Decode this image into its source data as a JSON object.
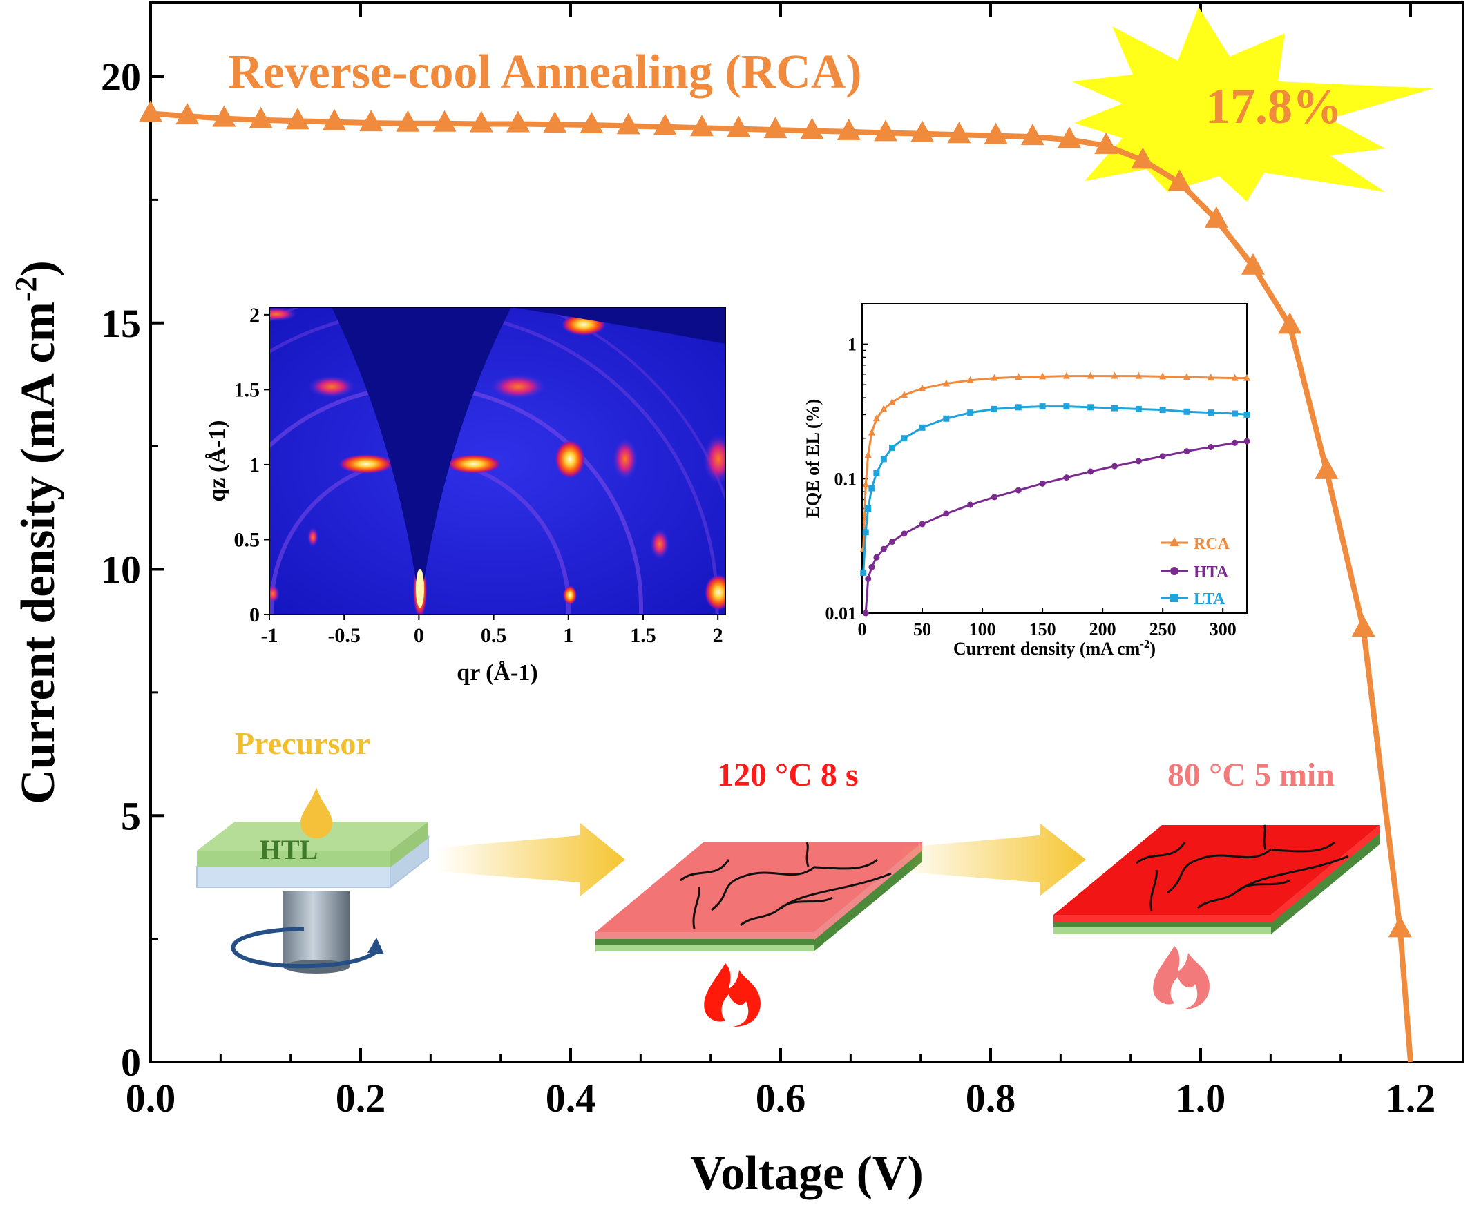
{
  "chart_data": [
    {
      "type": "line",
      "title": "Reverse-cool Annealing (RCA)",
      "xlabel": "Voltage (V)",
      "ylabel": "Current density (mA cm-2)",
      "xlim": [
        0.0,
        1.25
      ],
      "ylim": [
        0,
        21.5
      ],
      "x_ticks": [
        "0.0",
        "0.2",
        "0.4",
        "0.6",
        "0.8",
        "1.0",
        "1.2"
      ],
      "y_ticks": [
        "0",
        "5",
        "10",
        "15",
        "20"
      ],
      "series": [
        {
          "name": "RCA",
          "color": "#F08A3C",
          "marker": "triangle",
          "x": [
            0.0,
            0.035,
            0.07,
            0.105,
            0.14,
            0.175,
            0.21,
            0.245,
            0.28,
            0.315,
            0.35,
            0.385,
            0.42,
            0.455,
            0.49,
            0.525,
            0.56,
            0.595,
            0.63,
            0.665,
            0.7,
            0.735,
            0.77,
            0.805,
            0.84,
            0.875,
            0.91,
            0.945,
            0.98,
            1.015,
            1.05,
            1.085,
            1.12,
            1.155,
            1.19,
            1.2
          ],
          "y": [
            19.25,
            19.2,
            19.15,
            19.12,
            19.1,
            19.08,
            19.06,
            19.05,
            19.05,
            19.04,
            19.04,
            19.03,
            19.02,
            19.0,
            18.98,
            18.96,
            18.94,
            18.92,
            18.9,
            18.88,
            18.86,
            18.84,
            18.82,
            18.8,
            18.78,
            18.72,
            18.6,
            18.3,
            17.85,
            17.1,
            16.15,
            14.95,
            12.0,
            8.8,
            2.7,
            0.0
          ]
        }
      ],
      "annotations": {
        "pce_value": "17.8%"
      }
    },
    {
      "type": "line",
      "panel": "inset-right",
      "xlabel": "Current density (mA cm-2)",
      "ylabel": "EQE of EL (%)",
      "xlim": [
        0,
        320
      ],
      "ylim": [
        0.01,
        2
      ],
      "y_scale": "log",
      "x_ticks": [
        "0",
        "50",
        "100",
        "150",
        "200",
        "250",
        "300"
      ],
      "y_ticks": [
        "0.01",
        "0.1",
        "1"
      ],
      "series": [
        {
          "name": "RCA",
          "color": "#F08A3C",
          "marker": "triangle",
          "x": [
            1,
            3,
            5,
            8,
            12,
            18,
            25,
            35,
            50,
            70,
            90,
            110,
            130,
            150,
            170,
            190,
            210,
            230,
            250,
            270,
            290,
            310,
            320
          ],
          "y": [
            0.03,
            0.09,
            0.15,
            0.22,
            0.28,
            0.33,
            0.37,
            0.42,
            0.47,
            0.51,
            0.54,
            0.56,
            0.57,
            0.575,
            0.58,
            0.58,
            0.58,
            0.58,
            0.575,
            0.57,
            0.565,
            0.56,
            0.56
          ]
        },
        {
          "name": "HTA",
          "color": "#7B2A90",
          "marker": "circle",
          "x": [
            3,
            5,
            8,
            12,
            18,
            25,
            35,
            50,
            70,
            90,
            110,
            130,
            150,
            170,
            190,
            210,
            230,
            250,
            270,
            290,
            310,
            320
          ],
          "y": [
            0.01,
            0.018,
            0.022,
            0.026,
            0.03,
            0.034,
            0.039,
            0.046,
            0.055,
            0.064,
            0.073,
            0.082,
            0.092,
            0.102,
            0.113,
            0.124,
            0.135,
            0.147,
            0.16,
            0.172,
            0.185,
            0.19
          ]
        },
        {
          "name": "LTA",
          "color": "#1FA3DD",
          "marker": "square",
          "x": [
            1,
            3,
            5,
            8,
            12,
            18,
            25,
            35,
            50,
            70,
            90,
            110,
            130,
            150,
            170,
            190,
            210,
            230,
            250,
            270,
            290,
            310,
            320
          ],
          "y": [
            0.02,
            0.04,
            0.06,
            0.085,
            0.11,
            0.14,
            0.17,
            0.2,
            0.24,
            0.28,
            0.31,
            0.33,
            0.34,
            0.345,
            0.345,
            0.34,
            0.335,
            0.33,
            0.325,
            0.315,
            0.31,
            0.305,
            0.3
          ]
        }
      ]
    },
    {
      "type": "heatmap",
      "panel": "inset-left",
      "xlabel": "qr (Å-1)",
      "ylabel": "qz (Å-1)",
      "xlim": [
        -1,
        2.05
      ],
      "ylim": [
        0,
        2.05
      ],
      "x_ticks": [
        "-1",
        "-0.5",
        "0",
        "0.5",
        "1",
        "1.5",
        "2"
      ],
      "y_ticks": [
        "0",
        "0.5",
        "1",
        "1.5",
        "2"
      ]
    }
  ],
  "schematic": {
    "precursor_label": "Precursor",
    "htl_label": "HTL",
    "step1_label": "120 °C  8 s",
    "step2_label": "80 °C  5 min"
  }
}
